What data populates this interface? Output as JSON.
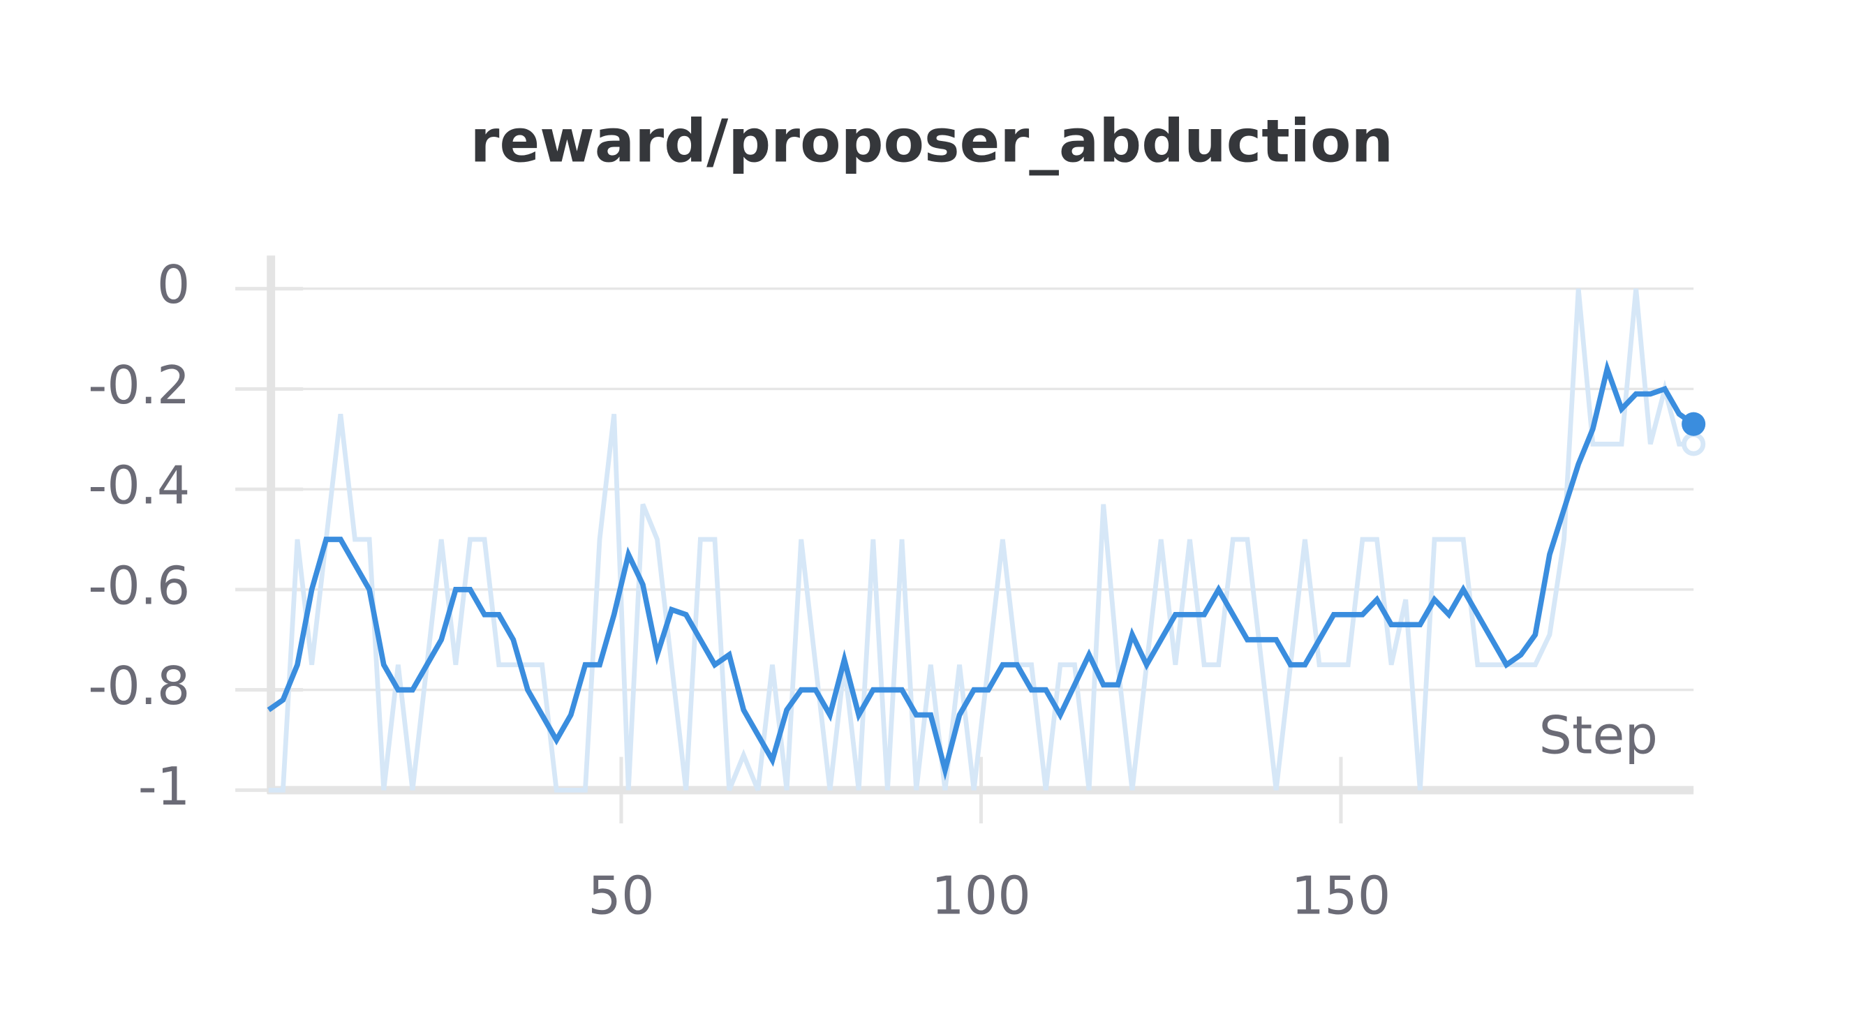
{
  "chart_data": {
    "type": "line",
    "title": "reward/proposer_abduction",
    "x_label": "Step",
    "xlim": [
      1,
      199
    ],
    "xticks": [
      50,
      100,
      150
    ],
    "ylim": [
      -1,
      0.066
    ],
    "yticks": [
      0,
      -0.2,
      -0.4,
      -0.6,
      -0.8,
      -1
    ],
    "grid": true,
    "x": [
      1,
      3,
      5,
      7,
      9,
      11,
      13,
      15,
      17,
      19,
      21,
      23,
      25,
      27,
      29,
      31,
      33,
      35,
      37,
      39,
      41,
      43,
      45,
      47,
      49,
      51,
      53,
      55,
      57,
      59,
      61,
      63,
      65,
      67,
      69,
      71,
      73,
      75,
      77,
      79,
      81,
      83,
      85,
      87,
      89,
      91,
      93,
      95,
      97,
      99,
      101,
      103,
      105,
      107,
      109,
      111,
      113,
      115,
      117,
      119,
      121,
      123,
      125,
      127,
      129,
      131,
      133,
      135,
      137,
      139,
      141,
      143,
      145,
      147,
      149,
      151,
      153,
      155,
      157,
      159,
      161,
      163,
      165,
      167,
      169,
      171,
      173,
      175,
      177,
      179,
      181,
      183,
      185,
      187,
      189,
      191,
      193,
      195,
      197,
      199
    ],
    "series": [
      {
        "color": "#d6e7f7",
        "values": [
          -1,
          -1,
          -0.5,
          -0.75,
          -0.5,
          -0.25,
          -0.5,
          -0.5,
          -1,
          -0.75,
          -1,
          -0.75,
          -0.5,
          -0.75,
          -0.5,
          -0.5,
          -0.75,
          -0.75,
          -0.75,
          -0.75,
          -1,
          -1,
          -1,
          -0.5,
          -0.25,
          -1,
          -0.43,
          -0.5,
          -0.75,
          -1,
          -0.5,
          -0.5,
          -1,
          -0.93,
          -1,
          -0.75,
          -1,
          -0.5,
          -0.75,
          -1,
          -0.75,
          -1,
          -0.5,
          -1,
          -0.5,
          -1,
          -0.75,
          -1,
          -0.75,
          -1,
          -0.75,
          -0.5,
          -0.75,
          -0.75,
          -1,
          -0.75,
          -0.75,
          -1,
          -0.43,
          -0.75,
          -1,
          -0.75,
          -0.5,
          -0.75,
          -0.5,
          -0.75,
          -0.75,
          -0.5,
          -0.5,
          -0.75,
          -1,
          -0.75,
          -0.5,
          -0.75,
          -0.75,
          -0.75,
          -0.5,
          -0.5,
          -0.75,
          -0.62,
          -1,
          -0.5,
          -0.5,
          -0.5,
          -0.75,
          -0.75,
          -0.75,
          -0.75,
          -0.75,
          -0.69,
          -0.5,
          0,
          -0.31,
          -0.31,
          -0.31,
          0,
          -0.31,
          -0.2,
          -0.31,
          -0.31
        ]
      },
      {
        "color": "#3a8dde",
        "values": [
          -0.84,
          -0.82,
          -0.75,
          -0.6,
          -0.5,
          -0.5,
          -0.55,
          -0.6,
          -0.75,
          -0.8,
          -0.8,
          -0.75,
          -0.7,
          -0.6,
          -0.6,
          -0.65,
          -0.65,
          -0.7,
          -0.8,
          -0.85,
          -0.9,
          -0.85,
          -0.75,
          -0.75,
          -0.65,
          -0.53,
          -0.59,
          -0.73,
          -0.64,
          -0.65,
          -0.7,
          -0.75,
          -0.73,
          -0.84,
          -0.89,
          -0.94,
          -0.84,
          -0.8,
          -0.8,
          -0.85,
          -0.74,
          -0.85,
          -0.8,
          -0.8,
          -0.8,
          -0.85,
          -0.85,
          -0.96,
          -0.85,
          -0.8,
          -0.8,
          -0.75,
          -0.75,
          -0.8,
          -0.8,
          -0.85,
          -0.79,
          -0.73,
          -0.79,
          -0.79,
          -0.69,
          -0.75,
          -0.7,
          -0.65,
          -0.65,
          -0.65,
          -0.6,
          -0.65,
          -0.7,
          -0.7,
          -0.7,
          -0.75,
          -0.75,
          -0.7,
          -0.65,
          -0.65,
          -0.65,
          -0.62,
          -0.67,
          -0.67,
          -0.67,
          -0.62,
          -0.65,
          -0.6,
          -0.65,
          -0.7,
          -0.75,
          -0.73,
          -0.69,
          -0.53,
          -0.44,
          -0.35,
          -0.28,
          -0.16,
          -0.24,
          -0.21,
          -0.21,
          -0.2,
          -0.25,
          -0.27
        ]
      }
    ]
  }
}
